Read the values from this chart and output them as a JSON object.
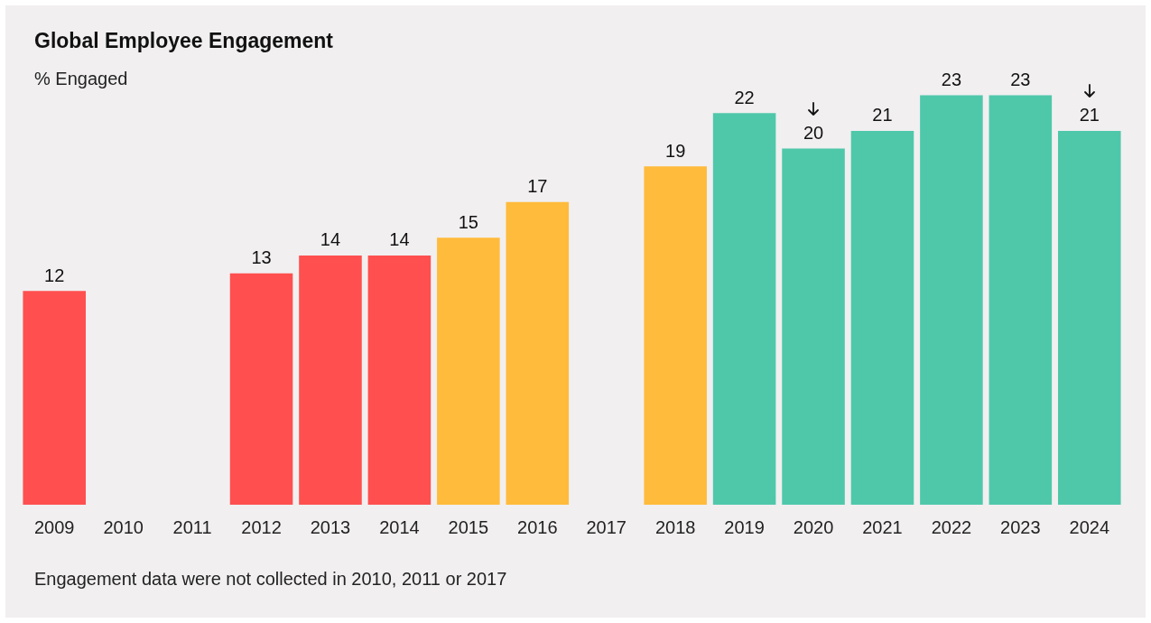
{
  "chart_data": {
    "type": "bar",
    "title": "Global Employee Engagement",
    "subtitle": "% Engaged",
    "categories": [
      "2009",
      "2010",
      "2011",
      "2012",
      "2013",
      "2014",
      "2015",
      "2016",
      "2017",
      "2018",
      "2019",
      "2020",
      "2021",
      "2022",
      "2023",
      "2024"
    ],
    "values": [
      12,
      null,
      null,
      13,
      14,
      14,
      15,
      17,
      null,
      19,
      22,
      20,
      21,
      23,
      23,
      21
    ],
    "colors": [
      "#ff4f4f",
      "#ff4f4f",
      "#ff4f4f",
      "#ff4f4f",
      "#ff4f4f",
      "#ff4f4f",
      "#ffbb3b",
      "#ffbb3b",
      "#ffbb3b",
      "#ffbb3b",
      "#4fc8aa",
      "#4fc8aa",
      "#4fc8aa",
      "#4fc8aa",
      "#4fc8aa",
      "#4fc8aa"
    ],
    "data_labels": true,
    "grid": false,
    "legend": false,
    "annotations": [
      "Engagement data were not collected in 2010, 2011 or 2017"
    ]
  }
}
